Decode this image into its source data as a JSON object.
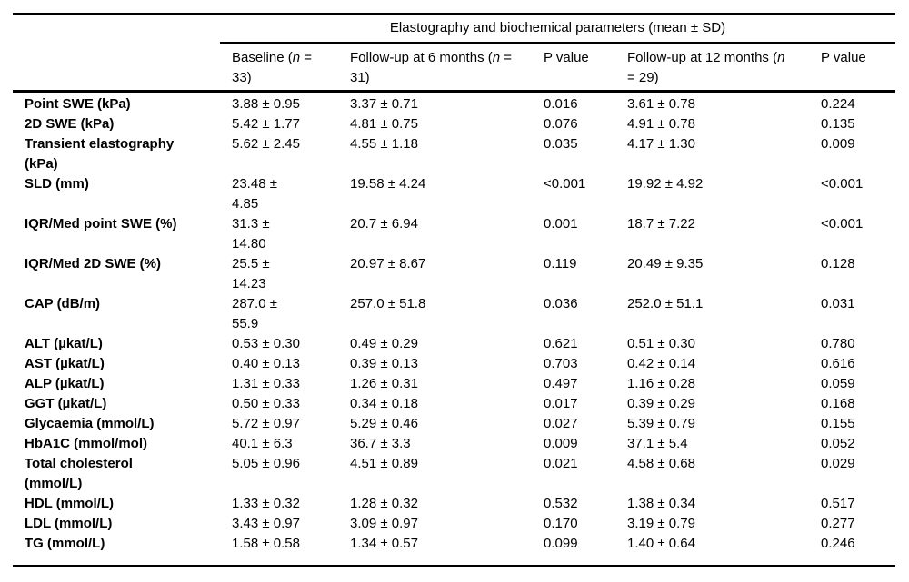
{
  "table": {
    "span_header": "Elastography and biochemical parameters (mean ± SD)",
    "columns": [
      {
        "pre": "Baseline (",
        "n": "n",
        "post": " =\n33)"
      },
      {
        "pre": "Follow-up at 6 months (",
        "n": "n",
        "post": " =\n31)"
      },
      {
        "label": "P value"
      },
      {
        "pre": "Follow-up at 12 months (",
        "n": "n",
        "post": "\n= 29)"
      },
      {
        "label": "P value"
      }
    ],
    "rows": [
      {
        "label": "Point SWE (kPa)",
        "baseline": "3.88 ± 0.95",
        "m6": "3.37 ± 0.71",
        "p6": "0.016",
        "m12": "3.61 ± 0.78",
        "p12": "0.224"
      },
      {
        "label": "2D SWE (kPa)",
        "baseline": "5.42 ± 1.77",
        "m6": "4.81 ± 0.75",
        "p6": "0.076",
        "m12": "4.91 ± 0.78",
        "p12": "0.135"
      },
      {
        "label": "Transient elastography\n(kPa)",
        "baseline": "5.62 ± 2.45",
        "m6": "4.55 ± 1.18",
        "p6": "0.035",
        "m12": "4.17 ± 1.30",
        "p12": "0.009"
      },
      {
        "label": "SLD (mm)",
        "baseline": "23.48 ±\n4.85",
        "m6": "19.58 ± 4.24",
        "p6": "<0.001",
        "m12": "19.92 ± 4.92",
        "p12": "<0.001"
      },
      {
        "label": "IQR/Med point SWE (%)",
        "baseline": "31.3 ±\n14.80",
        "m6": "20.7 ± 6.94",
        "p6": "0.001",
        "m12": "18.7 ± 7.22",
        "p12": "<0.001"
      },
      {
        "label": "IQR/Med 2D SWE (%)",
        "baseline": "25.5 ±\n14.23",
        "m6": "20.97 ± 8.67",
        "p6": "0.119",
        "m12": "20.49 ± 9.35",
        "p12": "0.128"
      },
      {
        "label": "CAP (dB/m)",
        "baseline": "287.0 ±\n55.9",
        "m6": "257.0 ± 51.8",
        "p6": "0.036",
        "m12": "252.0 ± 51.1",
        "p12": "0.031"
      },
      {
        "label": "ALT (µkat/L)",
        "baseline": "0.53 ± 0.30",
        "m6": "0.49 ± 0.29",
        "p6": "0.621",
        "m12": "0.51 ± 0.30",
        "p12": "0.780"
      },
      {
        "label": "AST (µkat/L)",
        "baseline": "0.40 ± 0.13",
        "m6": "0.39 ± 0.13",
        "p6": "0.703",
        "m12": "0.42 ± 0.14",
        "p12": "0.616"
      },
      {
        "label": "ALP (µkat/L)",
        "baseline": "1.31 ± 0.33",
        "m6": "1.26 ± 0.31",
        "p6": "0.497",
        "m12": "1.16 ± 0.28",
        "p12": "0.059"
      },
      {
        "label": "GGT (µkat/L)",
        "baseline": "0.50 ± 0.33",
        "m6": "0.34 ± 0.18",
        "p6": "0.017",
        "m12": "0.39 ± 0.29",
        "p12": "0.168"
      },
      {
        "label": "Glycaemia (mmol/L)",
        "baseline": "5.72 ± 0.97",
        "m6": "5.29 ± 0.46",
        "p6": "0.027",
        "m12": "5.39 ± 0.79",
        "p12": "0.155"
      },
      {
        "label": "HbA1C (mmol/mol)",
        "baseline": "40.1 ± 6.3",
        "m6": "36.7 ± 3.3",
        "p6": "0.009",
        "m12": "37.1 ± 5.4",
        "p12": "0.052"
      },
      {
        "label": "Total cholesterol\n(mmol/L)",
        "baseline": "5.05 ± 0.96",
        "m6": "4.51 ± 0.89",
        "p6": "0.021",
        "m12": "4.58 ± 0.68",
        "p12": "0.029"
      },
      {
        "label": "HDL (mmol/L)",
        "baseline": "1.33 ± 0.32",
        "m6": "1.28 ± 0.32",
        "p6": "0.532",
        "m12": "1.38 ± 0.34",
        "p12": "0.517"
      },
      {
        "label": "LDL (mmol/L)",
        "baseline": "3.43 ± 0.97",
        "m6": "3.09 ± 0.97",
        "p6": "0.170",
        "m12": "3.19 ± 0.79",
        "p12": "0.277"
      },
      {
        "label": "TG (mmol/L)",
        "baseline": "1.58 ± 0.58",
        "m6": "1.34 ± 0.57",
        "p6": "0.099",
        "m12": "1.40 ± 0.64",
        "p12": "0.246"
      }
    ]
  },
  "colors": {
    "text": "#000000",
    "background": "#ffffff",
    "rule": "#000000"
  }
}
